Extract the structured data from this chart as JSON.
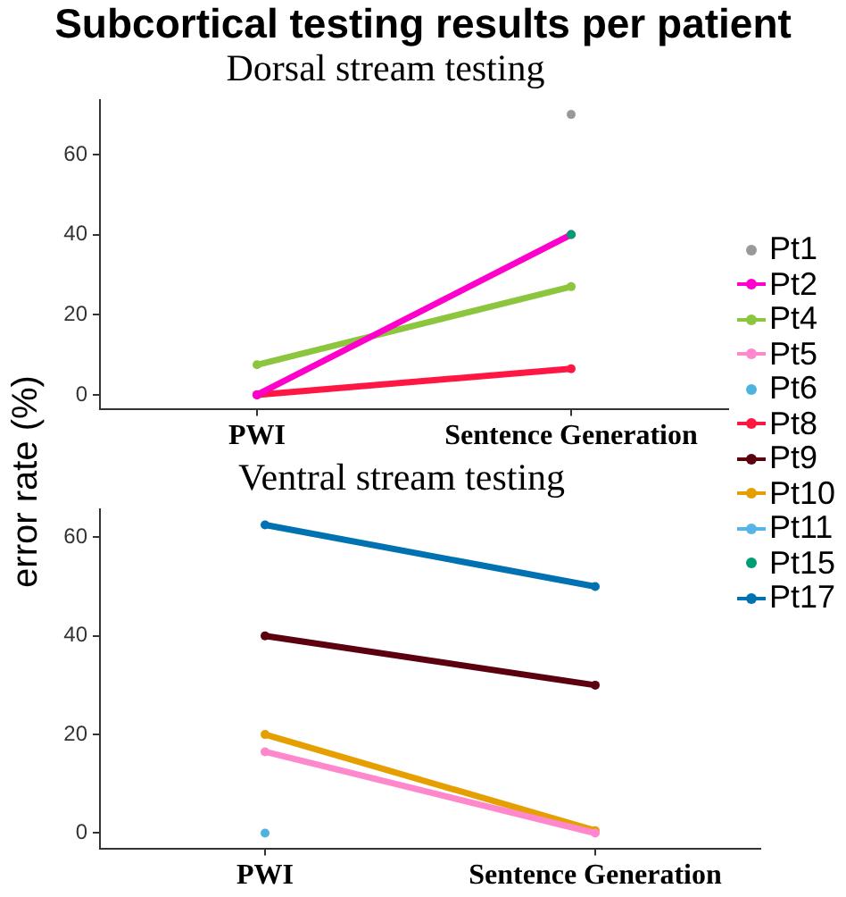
{
  "chart_data": [
    {
      "type": "line",
      "title": "Subcortical testing results per patient",
      "subtitle": "Dorsal stream testing",
      "ylabel": "error rate (%)",
      "categories": [
        "PWI",
        "Sentence Generation"
      ],
      "ylim": [
        -3.5,
        73.5
      ],
      "yticks": [
        0,
        20,
        40,
        60
      ],
      "grid": false,
      "legend": "right",
      "marker": "circle",
      "series": [
        {
          "name": "Pt1",
          "type": "scatter",
          "color": "#999999",
          "values": [
            null,
            70
          ]
        },
        {
          "name": "Pt2",
          "color": "#ff00cc",
          "values": [
            0,
            40
          ]
        },
        {
          "name": "Pt4",
          "color": "#8cc63f",
          "values": [
            7.5,
            27
          ]
        },
        {
          "name": "Pt5",
          "color": "#ff88cc",
          "values": [
            null,
            null
          ]
        },
        {
          "name": "Pt6",
          "type": "scatter",
          "color": "#4fb3e0",
          "values": [
            null,
            null
          ]
        },
        {
          "name": "Pt8",
          "color": "#ff1744",
          "values": [
            0,
            6.5
          ]
        },
        {
          "name": "Pt9",
          "color": "#5c0010",
          "values": [
            null,
            null
          ]
        },
        {
          "name": "Pt10",
          "color": "#e69f00",
          "values": [
            null,
            null
          ]
        },
        {
          "name": "Pt11",
          "color": "#56b4e9",
          "values": [
            null,
            null
          ]
        },
        {
          "name": "Pt15",
          "type": "scatter",
          "color": "#009e73",
          "values": [
            null,
            40
          ]
        },
        {
          "name": "Pt17",
          "color": "#0072b2",
          "values": [
            null,
            null
          ]
        }
      ]
    },
    {
      "type": "line",
      "title": "Ventral stream testing",
      "categories": [
        "PWI",
        "Sentence Generation"
      ],
      "ylim": [
        -3.1,
        65.6
      ],
      "yticks": [
        0,
        20,
        40,
        60
      ],
      "grid": false,
      "marker": "circle",
      "series": [
        {
          "color": "#ff88cc",
          "values": [
            16.5,
            0
          ]
        },
        {
          "type": "scatter",
          "color": "#4fb3e0",
          "values": [
            0,
            null
          ]
        },
        {
          "color": "#5c0010",
          "values": [
            40,
            30
          ]
        },
        {
          "color": "#e69f00",
          "values": [
            20,
            0.5
          ]
        },
        {
          "color": "#0072b2",
          "values": [
            62.5,
            50
          ]
        }
      ]
    }
  ]
}
